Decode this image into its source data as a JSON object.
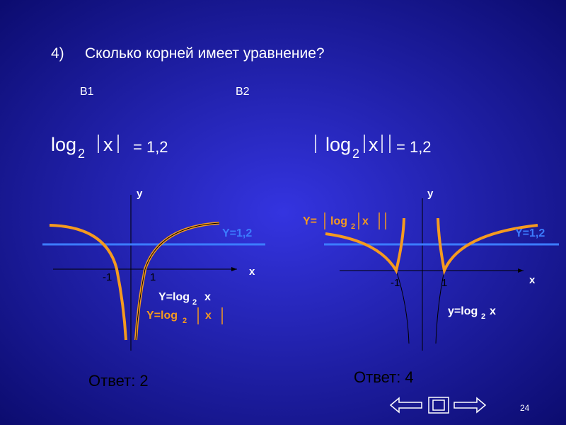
{
  "question": {
    "number": "4)",
    "text": "Сколько корней имеет уравнение?"
  },
  "variants": [
    {
      "label": "B1",
      "equation": {
        "func": "log",
        "base": "2",
        "arg": "x",
        "rhs": "= 1,2"
      },
      "graph": {
        "y_axis": "y",
        "x_axis": "x",
        "tick_left": "-1",
        "tick_right": "1",
        "line_label": "Y=1,2",
        "curve_label": {
          "func": "Y=log",
          "base": "2",
          "arg": "x"
        },
        "abs_curve_label": {
          "func": "Y=log",
          "base": "2",
          "arg": "x"
        }
      },
      "answer": "Ответ:  2"
    },
    {
      "label": "B2",
      "equation": {
        "func": "log",
        "base": "2",
        "arg": "x",
        "rhs": "= 1,2"
      },
      "graph": {
        "y_axis": "y",
        "x_axis": "x",
        "tick_left": "-1",
        "tick_right": "1",
        "line_label": "Y=1,2",
        "abs_curve_label": {
          "func": "Y=",
          "name": "log",
          "base": "2",
          "arg": "x"
        },
        "curve_label": {
          "func": "y=log",
          "base": "2",
          "arg": "x"
        }
      },
      "answer": "Ответ:  4"
    }
  ],
  "page_number": "24"
}
